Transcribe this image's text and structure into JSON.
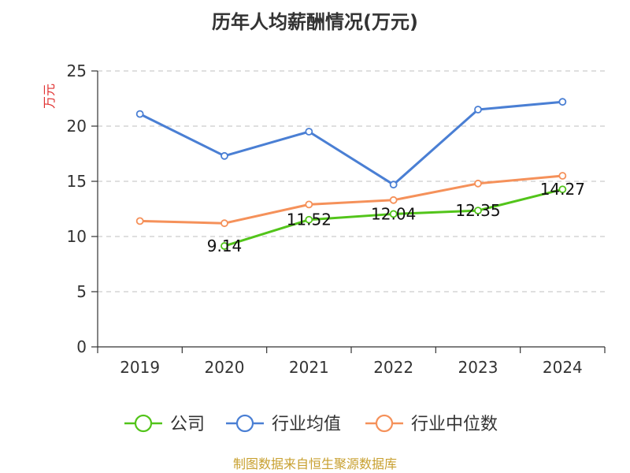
{
  "chart_data": {
    "type": "line",
    "title": "历年人均薪酬情况(万元)",
    "ylabel": "万元",
    "xlabel": "",
    "categories": [
      "2019",
      "2020",
      "2021",
      "2022",
      "2023",
      "2024"
    ],
    "ylim": [
      0,
      25
    ],
    "yticks": [
      0,
      5,
      10,
      15,
      20,
      25
    ],
    "grid": true,
    "legend_position": "bottom",
    "series": [
      {
        "name": "公司",
        "values": [
          null,
          9.14,
          11.52,
          12.04,
          12.35,
          14.27
        ],
        "color": "#52c41a",
        "labels": [
          null,
          "9.14",
          "11.52",
          "12.04",
          "12.35",
          "14.27"
        ]
      },
      {
        "name": "行业均值",
        "values": [
          21.1,
          17.3,
          19.5,
          14.7,
          21.5,
          22.2
        ],
        "color": "#4a7fd4"
      },
      {
        "name": "行业中位数",
        "values": [
          11.4,
          11.2,
          12.9,
          13.3,
          14.8,
          15.5
        ],
        "color": "#f5915a"
      }
    ],
    "source": "制图数据来自恒生聚源数据库"
  }
}
